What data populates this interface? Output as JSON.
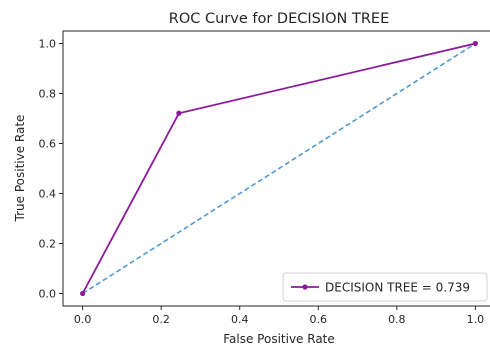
{
  "chart_data": {
    "type": "line",
    "title": "ROC Curve for DECISION TREE",
    "xlabel": "False Positive Rate",
    "ylabel": "True Positive Rate",
    "xlim": [
      -0.05,
      1.05
    ],
    "ylim": [
      -0.05,
      1.05
    ],
    "xticks": [
      0.0,
      0.2,
      0.4,
      0.6,
      0.8,
      1.0
    ],
    "xtick_labels": [
      "0.0",
      "0.2",
      "0.4",
      "0.6",
      "0.8",
      "1.0"
    ],
    "yticks": [
      0.0,
      0.2,
      0.4,
      0.6,
      0.8,
      1.0
    ],
    "ytick_labels": [
      "0.0",
      "0.2",
      "0.4",
      "0.6",
      "0.8",
      "1.0"
    ],
    "grid": false,
    "legend_position": "lower-right",
    "series": [
      {
        "name": "DECISION TREE = 0.739",
        "color": "#8b1a9b",
        "style": "solid",
        "marker": "dot",
        "x": [
          0.0,
          0.245,
          1.0
        ],
        "y": [
          0.0,
          0.721,
          1.0
        ]
      },
      {
        "color": "#4d9ad0",
        "style": "dashed",
        "marker": "none",
        "x": [
          0.0,
          1.0
        ],
        "y": [
          0.0,
          1.0
        ]
      }
    ]
  }
}
